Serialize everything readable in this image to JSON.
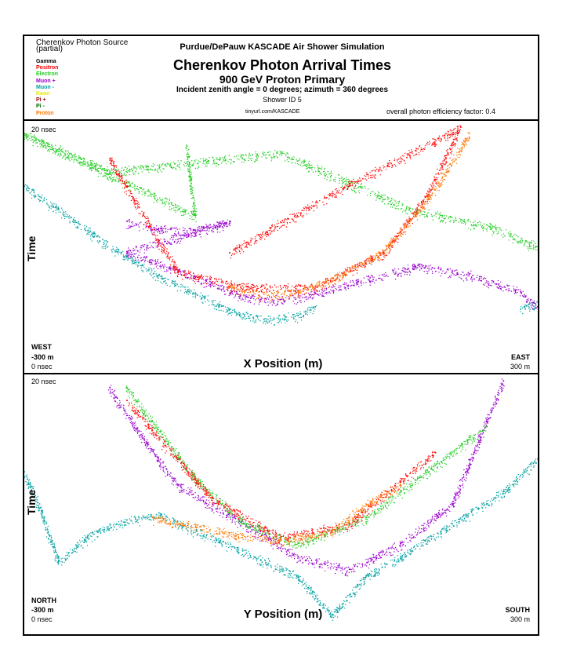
{
  "legend": {
    "title": "Cherenkov Photon Source",
    "subtitle": "(partial)",
    "items": [
      {
        "label": "Gamma",
        "color": "#000000"
      },
      {
        "label": "Positron",
        "color": "#ff0000"
      },
      {
        "label": "Electron",
        "color": "#22cc22"
      },
      {
        "label": "Muon +",
        "color": "#9900cc"
      },
      {
        "label": "Muon -",
        "color": "#00a0a0"
      },
      {
        "label": "Kaon",
        "color": "#e6e600"
      },
      {
        "label": "Pi +",
        "color": "#990000"
      },
      {
        "label": "Pi -",
        "color": "#006600"
      },
      {
        "label": "Proton",
        "color": "#ff7700"
      }
    ]
  },
  "header": {
    "org": "Purdue/DePauw KASCADE Air Shower Simulation",
    "title": "Cherenkov Photon Arrival Times",
    "subtitle": "900 GeV Proton Primary",
    "angles": "Incident zenith angle =  0 degrees;  azimuth =  360 degrees",
    "shower_id": "Shower ID 5",
    "url": "tinyurl.com/KASCADE",
    "efficiency": "overall photon efficiency factor: 0.4"
  },
  "panels": [
    {
      "top_time": "20 nsec",
      "bottom_time": "0 nsec",
      "left_dir": "WEST",
      "left_pos": "-300 m",
      "right_dir": "EAST",
      "right_pos": "300 m",
      "xlabel": "X Position (m)",
      "ylabel": "Time"
    },
    {
      "top_time": "20 nsec",
      "bottom_time": "0 nsec",
      "left_dir": "NORTH",
      "left_pos": "-300 m",
      "right_dir": "SOUTH",
      "right_pos": "300 m",
      "xlabel": "Y Position (m)",
      "ylabel": "Time"
    }
  ],
  "chart_data": [
    {
      "type": "scatter",
      "xlabel": "X Position (m)",
      "ylabel": "Time",
      "xlim": [
        -300,
        300
      ],
      "ylim": [
        0,
        20
      ],
      "series": [
        {
          "name": "Muon -",
          "color": "#00a0a0",
          "points": [
            [
              -300,
              14.8
            ],
            [
              -260,
              13.0
            ],
            [
              -220,
              11.0
            ],
            [
              -180,
              9.2
            ],
            [
              -140,
              7.6
            ],
            [
              -100,
              6.3
            ],
            [
              -60,
              5.0
            ],
            [
              -20,
              4.2
            ],
            [
              20,
              4.5
            ],
            [
              40,
              5.2
            ],
            [
              280,
              5.0
            ],
            [
              300,
              5.6
            ]
          ]
        },
        {
          "name": "Muon +",
          "color": "#9900cc",
          "points": [
            [
              -180,
              12.0
            ],
            [
              -140,
              11.4
            ],
            [
              -100,
              11.3
            ],
            [
              -60,
              12.0
            ],
            [
              -180,
              9.6
            ],
            [
              -100,
              7.6
            ],
            [
              -40,
              6.0
            ],
            [
              0,
              5.8
            ],
            [
              40,
              6.3
            ],
            [
              160,
              8.5
            ],
            [
              220,
              7.8
            ],
            [
              280,
              6.4
            ],
            [
              300,
              5.2
            ]
          ]
        },
        {
          "name": "Electron",
          "color": "#22cc22",
          "points": [
            [
              -110,
              18.0
            ],
            [
              -105,
              15.0
            ],
            [
              -100,
              12.5
            ],
            [
              -300,
              19.0
            ],
            [
              -200,
              16.0
            ],
            [
              0,
              17.5
            ],
            [
              150,
              13.0
            ],
            [
              250,
              11.5
            ],
            [
              300,
              10.0
            ]
          ]
        },
        {
          "name": "Positron",
          "color": "#ff0000",
          "points": [
            [
              -200,
              17.0
            ],
            [
              -120,
              8.0
            ],
            [
              -40,
              6.8
            ],
            [
              40,
              6.8
            ],
            [
              120,
              9.5
            ],
            [
              170,
              14.0
            ],
            [
              210,
              19.5
            ],
            [
              80,
              15.0
            ],
            [
              -60,
              9.5
            ]
          ]
        },
        {
          "name": "Proton",
          "color": "#ff7700",
          "points": [
            [
              -60,
              6.8
            ],
            [
              -20,
              6.2
            ],
            [
              20,
              6.4
            ],
            [
              60,
              7.5
            ],
            [
              120,
              9.6
            ],
            [
              180,
              14.5
            ],
            [
              220,
              19.0
            ]
          ]
        }
      ]
    },
    {
      "type": "scatter",
      "xlabel": "Y Position (m)",
      "ylabel": "Time",
      "xlim": [
        -300,
        300
      ],
      "ylim": [
        0,
        20
      ],
      "series": [
        {
          "name": "Muon -",
          "color": "#00a0a0",
          "points": [
            [
              -300,
              12.5
            ],
            [
              -280,
              9.5
            ],
            [
              -260,
              5.6
            ],
            [
              -220,
              7.8
            ],
            [
              -180,
              8.8
            ],
            [
              -140,
              9.2
            ],
            [
              20,
              4.5
            ],
            [
              60,
              1.5
            ],
            [
              100,
              4.5
            ],
            [
              140,
              6.0
            ],
            [
              200,
              8.5
            ],
            [
              260,
              11.0
            ],
            [
              300,
              13.5
            ]
          ]
        },
        {
          "name": "Muon +",
          "color": "#9900cc",
          "points": [
            [
              -200,
              19.0
            ],
            [
              -160,
              15.0
            ],
            [
              -120,
              11.5
            ],
            [
              -80,
              10.0
            ],
            [
              20,
              6.0
            ],
            [
              80,
              5.0
            ],
            [
              140,
              7.0
            ],
            [
              200,
              10.0
            ],
            [
              260,
              19.5
            ]
          ]
        },
        {
          "name": "Electron",
          "color": "#22cc22",
          "points": [
            [
              -180,
              19.0
            ],
            [
              -100,
              12.0
            ],
            [
              -40,
              8.5
            ],
            [
              20,
              7.0
            ],
            [
              100,
              9.0
            ],
            [
              180,
              13.0
            ],
            [
              240,
              16.0
            ]
          ]
        },
        {
          "name": "Positron",
          "color": "#ff0000",
          "points": [
            [
              -180,
              18.0
            ],
            [
              -80,
              10.5
            ],
            [
              0,
              7.5
            ],
            [
              80,
              8.5
            ],
            [
              180,
              14.0
            ]
          ]
        },
        {
          "name": "Proton",
          "color": "#ff7700",
          "points": [
            [
              -150,
              9.0
            ],
            [
              -60,
              7.8
            ],
            [
              0,
              7.2
            ],
            [
              60,
              8.0
            ],
            [
              100,
              10.0
            ],
            [
              140,
              11.5
            ]
          ]
        }
      ]
    }
  ]
}
